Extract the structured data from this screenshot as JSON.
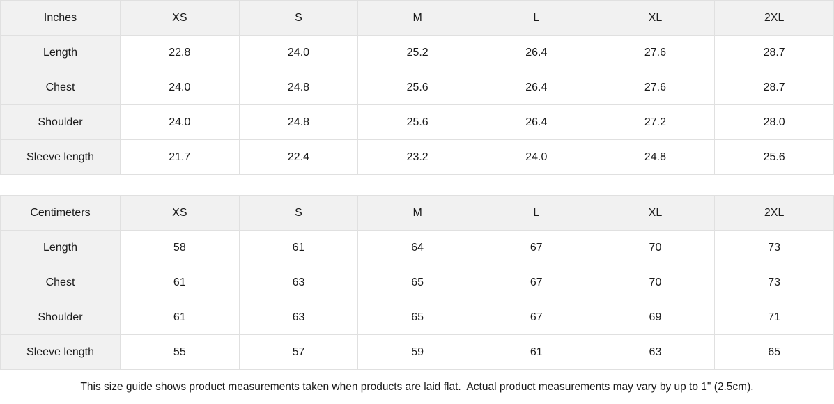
{
  "colors": {
    "header_bg": "#f1f1f1",
    "cell_bg": "#ffffff",
    "border": "#e0e0e0",
    "text": "#1a1a1a"
  },
  "tables": [
    {
      "unit_label": "Inches",
      "size_headers": [
        "XS",
        "S",
        "M",
        "L",
        "XL",
        "2XL"
      ],
      "rows": [
        {
          "label": "Length",
          "values": [
            "22.8",
            "24.0",
            "25.2",
            "26.4",
            "27.6",
            "28.7"
          ]
        },
        {
          "label": "Chest",
          "values": [
            "24.0",
            "24.8",
            "25.6",
            "26.4",
            "27.6",
            "28.7"
          ]
        },
        {
          "label": "Shoulder",
          "values": [
            "24.0",
            "24.8",
            "25.6",
            "26.4",
            "27.2",
            "28.0"
          ]
        },
        {
          "label": "Sleeve length",
          "values": [
            "21.7",
            "22.4",
            "23.2",
            "24.0",
            "24.8",
            "25.6"
          ]
        }
      ]
    },
    {
      "unit_label": "Centimeters",
      "size_headers": [
        "XS",
        "S",
        "M",
        "L",
        "XL",
        "2XL"
      ],
      "rows": [
        {
          "label": "Length",
          "values": [
            "58",
            "61",
            "64",
            "67",
            "70",
            "73"
          ]
        },
        {
          "label": "Chest",
          "values": [
            "61",
            "63",
            "65",
            "67",
            "70",
            "73"
          ]
        },
        {
          "label": "Shoulder",
          "values": [
            "61",
            "63",
            "65",
            "67",
            "69",
            "71"
          ]
        },
        {
          "label": "Sleeve length",
          "values": [
            "55",
            "57",
            "59",
            "61",
            "63",
            "65"
          ]
        }
      ]
    }
  ],
  "footer": {
    "note": "This size guide shows product measurements taken when products are laid flat.  Actual product measurements may vary by up to 1\" (2.5cm)."
  }
}
